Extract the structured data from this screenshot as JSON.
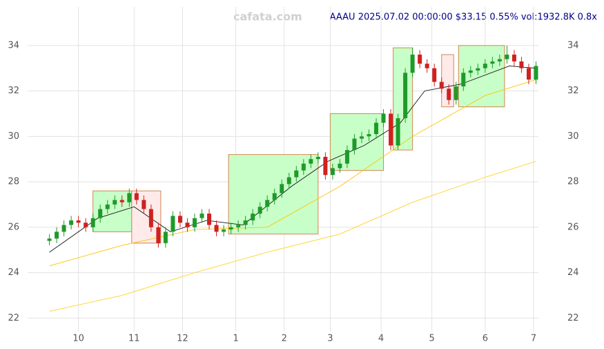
{
  "chart_data": {
    "type": "candlestick",
    "watermark": "cafata.com",
    "title": "AAAU 2025.07.02 00:00:00 $33.15 0.55% vol:1932.8K 0.8x",
    "x": [
      0,
      3,
      6,
      9,
      12,
      15,
      18,
      21,
      24,
      27,
      30,
      33,
      36,
      39,
      42,
      45,
      48,
      51,
      54,
      57,
      60,
      63,
      66,
      69,
      72,
      75,
      78,
      81,
      84,
      87,
      90,
      93,
      96,
      99,
      102,
      105,
      108,
      111,
      114,
      117,
      120,
      123,
      126,
      129,
      132,
      135,
      138,
      141,
      144,
      147,
      150,
      153,
      156,
      159,
      162,
      165,
      168,
      171,
      174,
      177,
      180,
      183,
      186,
      189,
      192,
      195,
      198,
      201
    ],
    "open": [
      25.4,
      25.5,
      25.8,
      26.1,
      26.3,
      26.2,
      26.0,
      26.4,
      26.8,
      27.0,
      27.2,
      27.1,
      27.5,
      27.2,
      26.8,
      26.0,
      25.3,
      25.8,
      26.5,
      26.2,
      26.0,
      26.4,
      26.6,
      26.1,
      25.8,
      25.9,
      26.0,
      26.1,
      26.3,
      26.6,
      26.9,
      27.2,
      27.5,
      27.9,
      28.2,
      28.5,
      28.8,
      29.0,
      29.1,
      28.3,
      28.6,
      28.8,
      29.4,
      29.9,
      30.0,
      30.1,
      30.6,
      31.0,
      29.6,
      30.8,
      32.8,
      33.6,
      33.2,
      33.0,
      32.4,
      32.1,
      31.6,
      32.2,
      32.8,
      32.9,
      33.0,
      33.2,
      33.3,
      33.4,
      33.6,
      33.3,
      33.0,
      32.5
    ],
    "high": [
      25.7,
      26.0,
      26.3,
      26.5,
      26.5,
      26.4,
      26.6,
      27.0,
      27.2,
      27.4,
      27.4,
      27.7,
      27.7,
      27.4,
      27.0,
      26.2,
      26.0,
      26.7,
      26.7,
      26.4,
      26.6,
      26.8,
      26.8,
      26.3,
      26.1,
      26.2,
      26.3,
      26.5,
      26.8,
      27.1,
      27.4,
      27.7,
      28.1,
      28.4,
      28.7,
      29.0,
      29.2,
      29.3,
      29.3,
      28.8,
      29.0,
      29.6,
      30.1,
      30.2,
      30.3,
      30.8,
      31.2,
      31.2,
      31.0,
      33.0,
      33.9,
      33.8,
      33.4,
      33.2,
      32.6,
      32.3,
      32.4,
      33.0,
      33.1,
      33.2,
      33.4,
      33.5,
      33.6,
      34.0,
      33.8,
      33.5,
      33.2,
      33.3
    ],
    "low": [
      25.2,
      25.3,
      25.6,
      25.9,
      26.0,
      25.8,
      25.8,
      26.2,
      26.6,
      26.8,
      26.9,
      26.9,
      27.0,
      26.6,
      25.8,
      25.1,
      25.1,
      25.6,
      26.0,
      25.8,
      25.8,
      26.2,
      25.9,
      25.6,
      25.6,
      25.7,
      25.8,
      25.9,
      26.1,
      26.4,
      26.7,
      27.0,
      27.3,
      27.7,
      28.0,
      28.3,
      28.6,
      28.8,
      28.1,
      28.1,
      28.4,
      28.6,
      29.2,
      29.7,
      29.8,
      29.9,
      30.4,
      29.4,
      29.4,
      30.6,
      32.6,
      33.0,
      32.8,
      32.2,
      31.9,
      31.4,
      31.4,
      32.0,
      32.6,
      32.7,
      32.8,
      33.0,
      33.1,
      33.2,
      33.1,
      32.8,
      32.3,
      32.3
    ],
    "close": [
      25.5,
      25.8,
      26.1,
      26.3,
      26.2,
      26.0,
      26.4,
      26.8,
      27.0,
      27.2,
      27.1,
      27.5,
      27.2,
      26.8,
      26.0,
      25.3,
      25.8,
      26.5,
      26.2,
      26.0,
      26.4,
      26.6,
      26.1,
      25.8,
      25.9,
      26.0,
      26.1,
      26.3,
      26.6,
      26.9,
      27.2,
      27.5,
      27.9,
      28.2,
      28.5,
      28.8,
      29.0,
      29.1,
      28.3,
      28.6,
      28.8,
      29.4,
      29.9,
      30.0,
      30.1,
      30.6,
      31.0,
      29.6,
      30.8,
      32.8,
      33.6,
      33.2,
      33.0,
      32.4,
      32.1,
      31.6,
      32.2,
      32.8,
      32.9,
      33.0,
      33.2,
      33.3,
      33.4,
      33.6,
      33.3,
      33.0,
      32.5,
      33.1
    ],
    "up_color": "#1e9a2a",
    "down_color": "#d02020",
    "lines": [
      {
        "color": "#ffd21e",
        "x": [
          0,
          30,
          60,
          90,
          120,
          150,
          180,
          201
        ],
        "values": [
          22.3,
          23.0,
          24.0,
          24.9,
          25.7,
          27.1,
          28.2,
          28.9
        ]
      },
      {
        "color": "#ffc400",
        "x": [
          0,
          30,
          60,
          90,
          120,
          150,
          180,
          201
        ],
        "values": [
          24.3,
          25.2,
          25.9,
          26.0,
          27.8,
          30.0,
          31.8,
          32.5
        ]
      },
      {
        "color": "#111111",
        "x": [
          0,
          20,
          35,
          50,
          65,
          80,
          100,
          115,
          130,
          145,
          155,
          170,
          190,
          201
        ],
        "values": [
          24.9,
          26.4,
          26.9,
          25.8,
          26.3,
          26.1,
          27.8,
          28.9,
          29.6,
          30.6,
          32.0,
          32.3,
          33.1,
          33.0
        ]
      }
    ],
    "zones": [
      {
        "color": "#c8ffc8",
        "x": [
          18,
          34
        ],
        "y": [
          25.8,
          27.6
        ]
      },
      {
        "color": "#ffeaea",
        "x": [
          34,
          46
        ],
        "y": [
          25.3,
          27.6
        ]
      },
      {
        "color": "#c8ffc8",
        "x": [
          74,
          111
        ],
        "y": [
          25.7,
          29.2
        ]
      },
      {
        "color": "#c8ffc8",
        "x": [
          116,
          138
        ],
        "y": [
          28.5,
          31.0
        ]
      },
      {
        "color": "#c8ffc8",
        "x": [
          142,
          150
        ],
        "y": [
          29.4,
          33.9
        ]
      },
      {
        "color": "#ffeaea",
        "x": [
          162,
          167
        ],
        "y": [
          31.3,
          33.6
        ]
      },
      {
        "color": "#c8ffc8",
        "x": [
          169,
          188
        ],
        "y": [
          31.3,
          34.0
        ]
      }
    ],
    "xlim": [
      -9,
      202
    ],
    "ylim": [
      21.4,
      35.7
    ],
    "xticks": [
      {
        "value": 12,
        "label": "10"
      },
      {
        "value": 35,
        "label": "11"
      },
      {
        "value": 55,
        "label": "12"
      },
      {
        "value": 77,
        "label": "1"
      },
      {
        "value": 97,
        "label": "2"
      },
      {
        "value": 116,
        "label": "3"
      },
      {
        "value": 137,
        "label": "4"
      },
      {
        "value": 158,
        "label": "5"
      },
      {
        "value": 180,
        "label": "6"
      },
      {
        "value": 200,
        "label": "7"
      }
    ],
    "yticks": [
      22,
      24,
      26,
      28,
      30,
      32,
      34
    ],
    "grid": true
  }
}
